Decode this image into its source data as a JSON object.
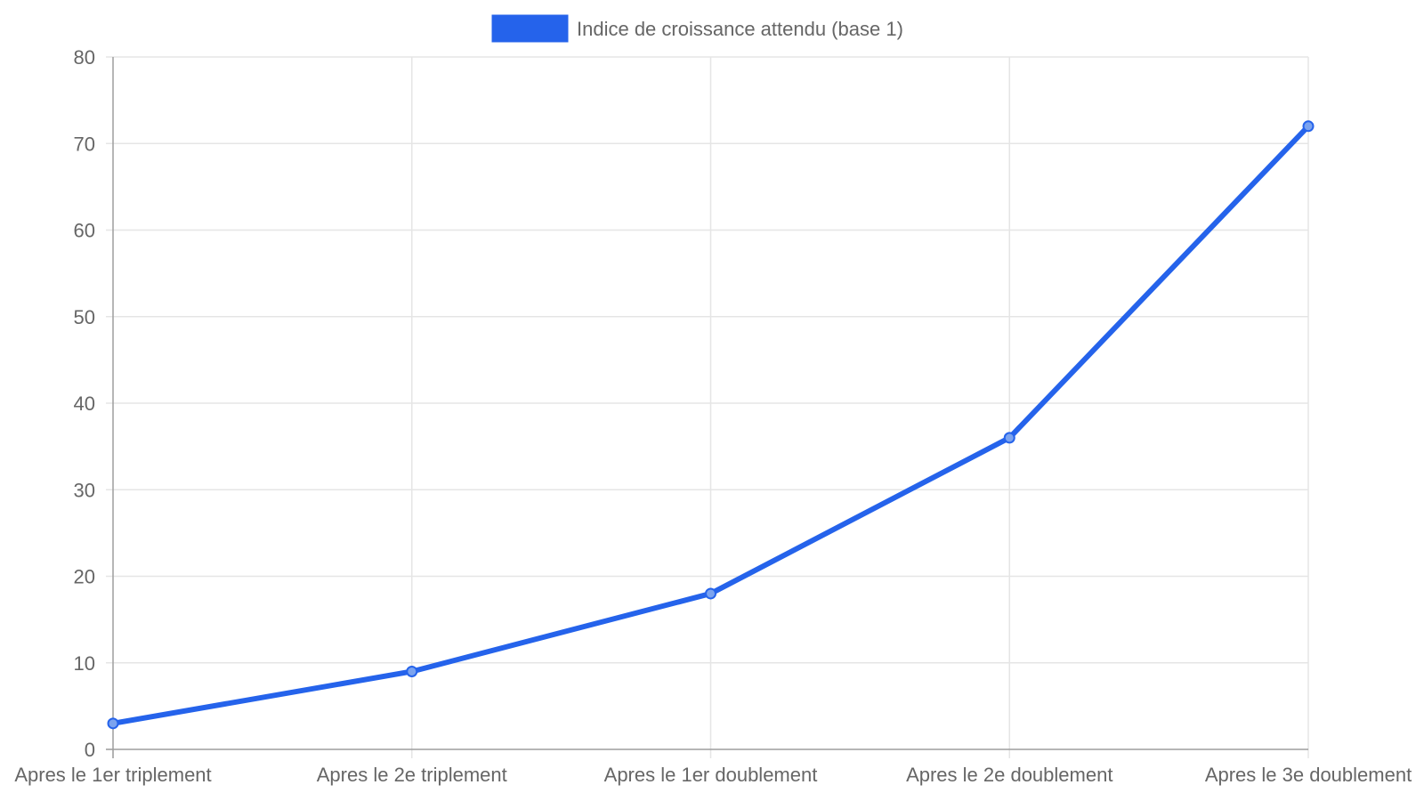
{
  "chart_data": {
    "type": "line",
    "categories": [
      "Apres le 1er triplement",
      "Apres le 2e triplement",
      "Apres le 1er doublement",
      "Apres le 2e doublement",
      "Apres le 3e doublement"
    ],
    "series": [
      {
        "name": "Indice de croissance attendu (base 1)",
        "values": [
          3,
          9,
          18,
          36,
          72
        ],
        "color": "#2563eb"
      }
    ],
    "ylim": [
      0,
      80
    ],
    "yticks": [
      0,
      10,
      20,
      30,
      40,
      50,
      60,
      70,
      80
    ],
    "grid": true,
    "legend_position": "top-center"
  },
  "colors": {
    "grid": "#e5e5e5",
    "axis": "#9e9e9e",
    "text": "#666666"
  }
}
